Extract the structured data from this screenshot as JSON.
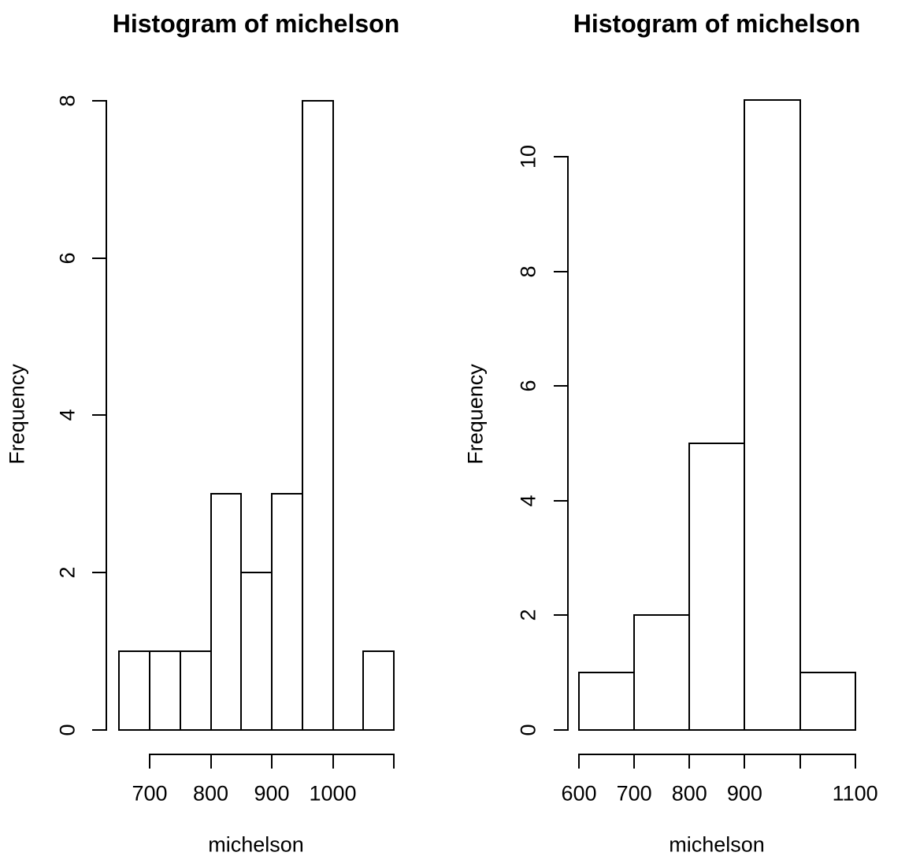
{
  "figure": {
    "background": "#ffffff",
    "stroke_color": "#000000",
    "bar_fill": "#ffffff"
  },
  "chart_data": [
    {
      "type": "bar",
      "subtype": "histogram",
      "title": "Histogram of michelson",
      "xlabel": "michelson",
      "ylabel": "Frequency",
      "breaks": [
        650,
        700,
        750,
        800,
        850,
        900,
        950,
        1000,
        1050,
        1100
      ],
      "counts": [
        1,
        1,
        1,
        3,
        2,
        3,
        8,
        0,
        1
      ],
      "x_tick_values": [
        700,
        800,
        900,
        1000,
        1100
      ],
      "x_tick_labels": [
        "700",
        "800",
        "900",
        "1000",
        ""
      ],
      "y_tick_values": [
        0,
        2,
        4,
        6,
        8
      ],
      "y_tick_labels": [
        "0",
        "2",
        "4",
        "6",
        "8"
      ],
      "xlim": [
        650,
        1100
      ],
      "ylim": [
        0,
        8
      ],
      "grid": false,
      "legend": null
    },
    {
      "type": "bar",
      "subtype": "histogram",
      "title": "Histogram of michelson",
      "xlabel": "michelson",
      "ylabel": "Frequency",
      "breaks": [
        600,
        700,
        800,
        900,
        1000,
        1100
      ],
      "counts": [
        1,
        2,
        5,
        11,
        1
      ],
      "x_tick_values": [
        600,
        700,
        800,
        900,
        1000,
        1100
      ],
      "x_tick_labels": [
        "600",
        "700",
        "800",
        "900",
        "",
        "1100"
      ],
      "y_tick_values": [
        0,
        2,
        4,
        6,
        8,
        10
      ],
      "y_tick_labels": [
        "0",
        "2",
        "4",
        "6",
        "8",
        "10"
      ],
      "xlim": [
        600,
        1100
      ],
      "ylim": [
        0,
        11
      ],
      "grid": false,
      "legend": null
    }
  ]
}
